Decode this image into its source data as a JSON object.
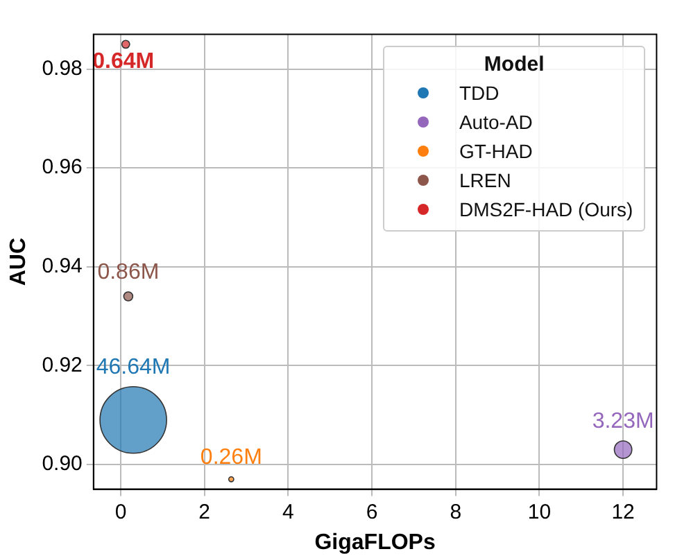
{
  "chart_data": {
    "type": "bubble",
    "xlabel": "GigaFLOPs",
    "ylabel": "AUC",
    "legend_title": "Model",
    "legend": "top right",
    "grid": true,
    "xlim": [
      -0.65,
      12.8
    ],
    "xticks": [
      0,
      2,
      4,
      6,
      8,
      10,
      12
    ],
    "ylim": [
      0.895,
      0.987
    ],
    "yticks": [
      {
        "value": 0.9,
        "label": "0.90"
      },
      {
        "value": 0.92,
        "label": "0.92"
      },
      {
        "value": 0.94,
        "label": "0.94"
      },
      {
        "value": 0.96,
        "label": "0.96"
      },
      {
        "value": 0.98,
        "label": "0.98"
      }
    ],
    "series": [
      {
        "name": "TDD",
        "color": "#1f77b4",
        "x": [
          0.3
        ],
        "values": [
          0.909
        ],
        "sizes": [
          46.64
        ],
        "value_labels": [
          "46.64M"
        ]
      },
      {
        "name": "Auto-AD",
        "color": "#9467bd",
        "x": [
          12
        ],
        "values": [
          0.903
        ],
        "sizes": [
          3.23
        ],
        "value_labels": [
          "3.23M"
        ]
      },
      {
        "name": "GT-HAD",
        "color": "#ff7f0e",
        "x": [
          2.64
        ],
        "values": [
          0.897
        ],
        "sizes": [
          0.26
        ],
        "value_labels": [
          "0.26M"
        ]
      },
      {
        "name": "LREN",
        "color": "#8c564b",
        "x": [
          0.18
        ],
        "values": [
          0.934
        ],
        "sizes": [
          0.86
        ],
        "value_labels": [
          "0.86M"
        ]
      },
      {
        "name": "DMS2F-HAD (Ours)",
        "color": "#d62728",
        "x": [
          0.12
        ],
        "values": [
          0.985
        ],
        "sizes": [
          0.64
        ],
        "value_labels": [
          "0.64M"
        ]
      }
    ]
  }
}
